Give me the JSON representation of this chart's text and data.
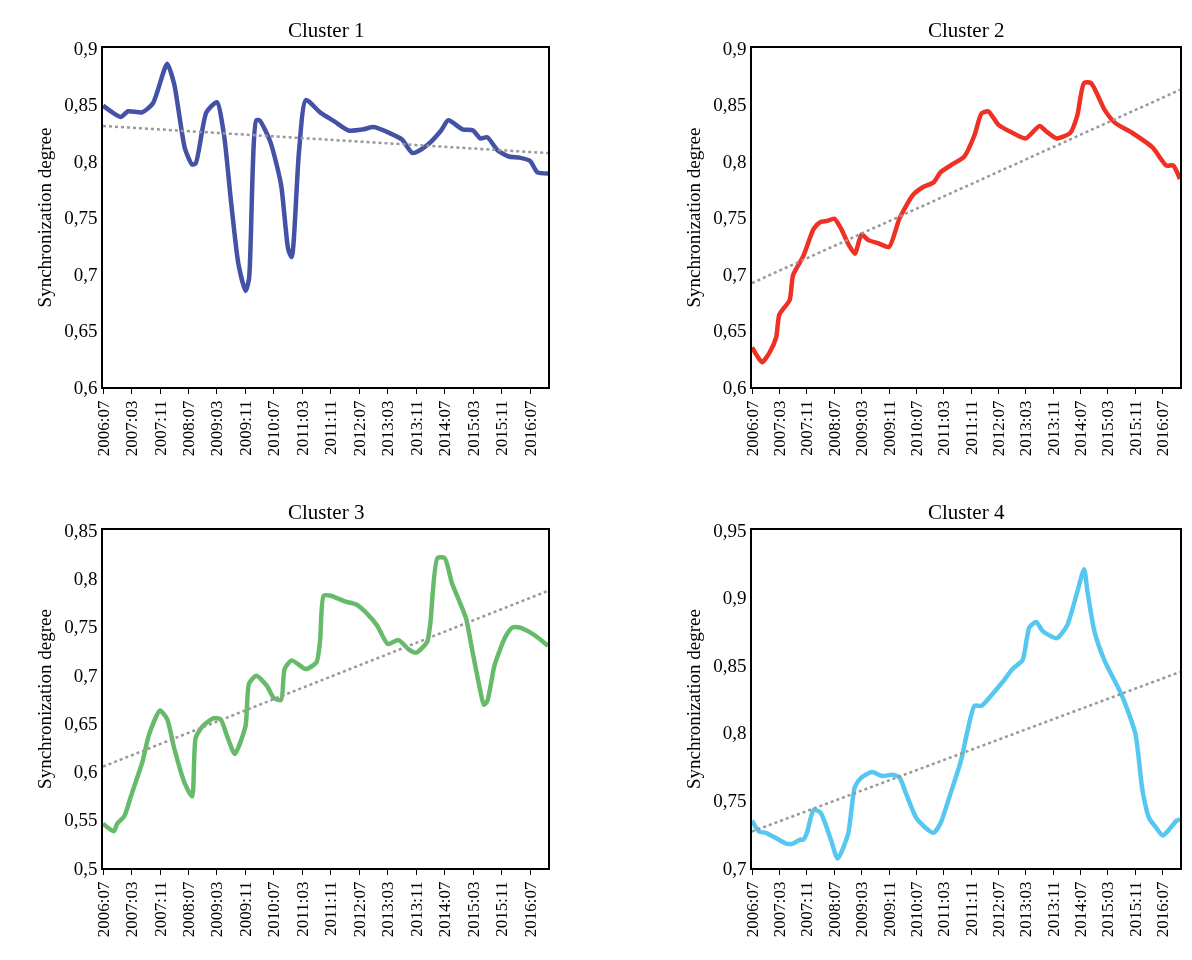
{
  "chart_data": [
    {
      "type": "line",
      "title": "Cluster 1",
      "ylabel": "Synchronization degree",
      "marker": "none",
      "line_style": "solid",
      "xlim": [
        "2006-07",
        "2016-12"
      ],
      "ylim": [
        0.6,
        0.9
      ],
      "yticks": [
        {
          "value": 0.6,
          "label": "0,6"
        },
        {
          "value": 0.65,
          "label": "0,65"
        },
        {
          "value": 0.7,
          "label": "0,7"
        },
        {
          "value": 0.75,
          "label": "0,75"
        },
        {
          "value": 0.8,
          "label": "0,8"
        },
        {
          "value": 0.85,
          "label": "0,85"
        },
        {
          "value": 0.9,
          "label": "0,9"
        }
      ],
      "xticks": [
        {
          "value": "2006-07",
          "label": "2006:07"
        },
        {
          "value": "2007-03",
          "label": "2007:03"
        },
        {
          "value": "2007-11",
          "label": "2007:11"
        },
        {
          "value": "2008-07",
          "label": "2008:07"
        },
        {
          "value": "2009-03",
          "label": "2009:03"
        },
        {
          "value": "2009-11",
          "label": "2009:11"
        },
        {
          "value": "2010-07",
          "label": "2010:07"
        },
        {
          "value": "2011-03",
          "label": "2011:03"
        },
        {
          "value": "2011-11",
          "label": "2011:11"
        },
        {
          "value": "2012-07",
          "label": "2012:07"
        },
        {
          "value": "2013-03",
          "label": "2013:03"
        },
        {
          "value": "2013-11",
          "label": "2013:11"
        },
        {
          "value": "2014-07",
          "label": "2014:07"
        },
        {
          "value": "2015-03",
          "label": "2015:03"
        },
        {
          "value": "2015-11",
          "label": "2015:11"
        },
        {
          "value": "2016-07",
          "label": "2016:07"
        }
      ],
      "series": [
        {
          "color": "#4452a6",
          "x": [
            "2006-07",
            "2006-12",
            "2007-02",
            "2007-06",
            "2007-09",
            "2008-01",
            "2008-03",
            "2008-06",
            "2008-08",
            "2008-09",
            "2008-12",
            "2009-03",
            "2009-05",
            "2009-07",
            "2009-09",
            "2009-11",
            "2009-12",
            "2010-02",
            "2010-03",
            "2010-06",
            "2010-09",
            "2010-11",
            "2010-12",
            "2011-02",
            "2011-04",
            "2011-08",
            "2011-12",
            "2012-04",
            "2012-08",
            "2012-11",
            "2013-04",
            "2013-07",
            "2013-10",
            "2014-02",
            "2014-06",
            "2014-08",
            "2014-12",
            "2015-03",
            "2015-05",
            "2015-07",
            "2015-10",
            "2016-01",
            "2016-04",
            "2016-07",
            "2016-09",
            "2016-12"
          ],
          "values": [
            0.849,
            0.839,
            0.844,
            0.843,
            0.851,
            0.886,
            0.868,
            0.811,
            0.797,
            0.798,
            0.843,
            0.852,
            0.823,
            0.763,
            0.709,
            0.685,
            0.696,
            0.836,
            0.836,
            0.817,
            0.779,
            0.722,
            0.715,
            0.808,
            0.854,
            0.843,
            0.835,
            0.827,
            0.828,
            0.83,
            0.824,
            0.819,
            0.807,
            0.814,
            0.827,
            0.836,
            0.828,
            0.827,
            0.82,
            0.821,
            0.809,
            0.804,
            0.803,
            0.8,
            0.79,
            0.789
          ]
        },
        {
          "type": "line",
          "color": "#999999",
          "line_style": "dotted",
          "x": [
            "2006-07",
            "2016-12"
          ],
          "values": [
            0.831,
            0.807
          ]
        }
      ]
    },
    {
      "type": "line",
      "title": "Cluster 2",
      "ylabel": "Synchronization degree",
      "marker": "none",
      "line_style": "solid",
      "xlim": [
        "2006-07",
        "2016-12"
      ],
      "ylim": [
        0.6,
        0.9
      ],
      "yticks": [
        {
          "value": 0.6,
          "label": "0,6"
        },
        {
          "value": 0.65,
          "label": "0,65"
        },
        {
          "value": 0.7,
          "label": "0,7"
        },
        {
          "value": 0.75,
          "label": "0,75"
        },
        {
          "value": 0.8,
          "label": "0,8"
        },
        {
          "value": 0.85,
          "label": "0,85"
        },
        {
          "value": 0.9,
          "label": "0,9"
        }
      ],
      "xticks": [
        {
          "value": "2006-07",
          "label": "2006:07"
        },
        {
          "value": "2007-03",
          "label": "2007:03"
        },
        {
          "value": "2007-11",
          "label": "2007:11"
        },
        {
          "value": "2008-07",
          "label": "2008:07"
        },
        {
          "value": "2009-03",
          "label": "2009:03"
        },
        {
          "value": "2009-11",
          "label": "2009:11"
        },
        {
          "value": "2010-07",
          "label": "2010:07"
        },
        {
          "value": "2011-03",
          "label": "2011:03"
        },
        {
          "value": "2011-11",
          "label": "2011:11"
        },
        {
          "value": "2012-07",
          "label": "2012:07"
        },
        {
          "value": "2013-03",
          "label": "2013:03"
        },
        {
          "value": "2013-11",
          "label": "2013:11"
        },
        {
          "value": "2014-07",
          "label": "2014:07"
        },
        {
          "value": "2015-03",
          "label": "2015:03"
        },
        {
          "value": "2015-11",
          "label": "2015:11"
        },
        {
          "value": "2016-07",
          "label": "2016:07"
        }
      ],
      "series": [
        {
          "color": "#ee3124",
          "x": [
            "2006-07",
            "2006-09",
            "2006-10",
            "2006-12",
            "2007-02",
            "2007-03",
            "2007-06",
            "2007-07",
            "2007-10",
            "2008-01",
            "2008-03",
            "2008-05",
            "2008-07",
            "2008-09",
            "2008-11",
            "2009-01",
            "2009-03",
            "2009-05",
            "2009-08",
            "2009-11",
            "2010-02",
            "2010-06",
            "2010-09",
            "2010-12",
            "2011-02",
            "2011-05",
            "2011-09",
            "2011-12",
            "2012-02",
            "2012-04",
            "2012-07",
            "2012-11",
            "2013-03",
            "2013-07",
            "2013-09",
            "2013-12",
            "2014-04",
            "2014-06",
            "2014-08",
            "2014-10",
            "2015-02",
            "2015-05",
            "2015-10",
            "2016-04",
            "2016-08",
            "2016-10",
            "2016-12"
          ],
          "values": [
            0.635,
            0.625,
            0.622,
            0.63,
            0.644,
            0.664,
            0.677,
            0.699,
            0.716,
            0.74,
            0.746,
            0.747,
            0.749,
            0.74,
            0.727,
            0.718,
            0.735,
            0.73,
            0.727,
            0.724,
            0.749,
            0.77,
            0.777,
            0.781,
            0.79,
            0.796,
            0.804,
            0.823,
            0.842,
            0.844,
            0.832,
            0.825,
            0.82,
            0.831,
            0.826,
            0.82,
            0.825,
            0.84,
            0.869,
            0.869,
            0.845,
            0.834,
            0.825,
            0.812,
            0.796,
            0.796,
            0.784
          ]
        },
        {
          "type": "line",
          "color": "#999999",
          "line_style": "dotted",
          "x": [
            "2006-07",
            "2016-12"
          ],
          "values": [
            0.692,
            0.863
          ]
        }
      ]
    },
    {
      "type": "line",
      "title": "Cluster 3",
      "ylabel": "Synchronization degree",
      "marker": "none",
      "line_style": "solid",
      "xlim": [
        "2006-07",
        "2016-12"
      ],
      "ylim": [
        0.5,
        0.85
      ],
      "yticks": [
        {
          "value": 0.5,
          "label": "0,5"
        },
        {
          "value": 0.55,
          "label": "0,55"
        },
        {
          "value": 0.6,
          "label": "0,6"
        },
        {
          "value": 0.65,
          "label": "0,65"
        },
        {
          "value": 0.7,
          "label": "0,7"
        },
        {
          "value": 0.75,
          "label": "0,75"
        },
        {
          "value": 0.8,
          "label": "0,8"
        },
        {
          "value": 0.85,
          "label": "0,85"
        }
      ],
      "xticks": [
        {
          "value": "2006-07",
          "label": "2006:07"
        },
        {
          "value": "2007-03",
          "label": "2007:03"
        },
        {
          "value": "2007-11",
          "label": "2007:11"
        },
        {
          "value": "2008-07",
          "label": "2008:07"
        },
        {
          "value": "2009-03",
          "label": "2009:03"
        },
        {
          "value": "2009-11",
          "label": "2009:11"
        },
        {
          "value": "2010-07",
          "label": "2010:07"
        },
        {
          "value": "2011-03",
          "label": "2011:03"
        },
        {
          "value": "2011-11",
          "label": "2011:11"
        },
        {
          "value": "2012-07",
          "label": "2012:07"
        },
        {
          "value": "2013-03",
          "label": "2013:03"
        },
        {
          "value": "2013-11",
          "label": "2013:11"
        },
        {
          "value": "2014-07",
          "label": "2014:07"
        },
        {
          "value": "2015-03",
          "label": "2015:03"
        },
        {
          "value": "2015-11",
          "label": "2015:11"
        },
        {
          "value": "2016-07",
          "label": "2016:07"
        }
      ],
      "series": [
        {
          "color": "#66bb6a",
          "x": [
            "2006-07",
            "2006-10",
            "2006-11",
            "2007-01",
            "2007-03",
            "2007-06",
            "2007-08",
            "2007-11",
            "2008-01",
            "2008-03",
            "2008-06",
            "2008-08",
            "2008-09",
            "2008-11",
            "2009-02",
            "2009-04",
            "2009-06",
            "2009-08",
            "2009-11",
            "2009-12",
            "2010-02",
            "2010-05",
            "2010-07",
            "2010-09",
            "2010-10",
            "2010-12",
            "2011-04",
            "2011-07",
            "2011-08",
            "2011-09",
            "2011-11",
            "2012-03",
            "2012-06",
            "2012-09",
            "2012-12",
            "2013-03",
            "2013-06",
            "2013-09",
            "2013-11",
            "2014-02",
            "2014-03",
            "2014-05",
            "2014-07",
            "2014-09",
            "2014-11",
            "2015-01",
            "2015-03",
            "2015-05",
            "2015-06",
            "2015-07",
            "2015-09",
            "2015-12",
            "2016-02",
            "2016-04",
            "2016-07",
            "2016-09",
            "2016-12"
          ],
          "values": [
            0.546,
            0.538,
            0.546,
            0.554,
            0.576,
            0.609,
            0.639,
            0.663,
            0.654,
            0.624,
            0.587,
            0.574,
            0.635,
            0.647,
            0.655,
            0.654,
            0.635,
            0.618,
            0.647,
            0.691,
            0.699,
            0.689,
            0.676,
            0.674,
            0.706,
            0.715,
            0.706,
            0.713,
            0.736,
            0.782,
            0.782,
            0.776,
            0.773,
            0.764,
            0.751,
            0.732,
            0.736,
            0.726,
            0.723,
            0.734,
            0.754,
            0.821,
            0.821,
            0.795,
            0.777,
            0.758,
            0.721,
            0.684,
            0.669,
            0.673,
            0.71,
            0.739,
            0.749,
            0.749,
            0.744,
            0.739,
            0.73
          ]
        },
        {
          "type": "line",
          "color": "#999999",
          "line_style": "dotted",
          "x": [
            "2006-07",
            "2016-12"
          ],
          "values": [
            0.605,
            0.787
          ]
        }
      ]
    },
    {
      "type": "line",
      "title": "Cluster 4",
      "ylabel": "Synchronization degree",
      "marker": "none",
      "line_style": "solid",
      "xlim": [
        "2006-07",
        "2016-12"
      ],
      "ylim": [
        0.7,
        0.95
      ],
      "yticks": [
        {
          "value": 0.7,
          "label": "0,7"
        },
        {
          "value": 0.75,
          "label": "0,75"
        },
        {
          "value": 0.8,
          "label": "0,8"
        },
        {
          "value": 0.85,
          "label": "0,85"
        },
        {
          "value": 0.9,
          "label": "0,9"
        },
        {
          "value": 0.95,
          "label": "0,95"
        }
      ],
      "xticks": [
        {
          "value": "2006-07",
          "label": "2006:07"
        },
        {
          "value": "2007-03",
          "label": "2007:03"
        },
        {
          "value": "2007-11",
          "label": "2007:11"
        },
        {
          "value": "2008-07",
          "label": "2008:07"
        },
        {
          "value": "2009-03",
          "label": "2009:03"
        },
        {
          "value": "2009-11",
          "label": "2009:11"
        },
        {
          "value": "2010-07",
          "label": "2010:07"
        },
        {
          "value": "2011-03",
          "label": "2011:03"
        },
        {
          "value": "2011-11",
          "label": "2011:11"
        },
        {
          "value": "2012-07",
          "label": "2012:07"
        },
        {
          "value": "2013-03",
          "label": "2013:03"
        },
        {
          "value": "2013-11",
          "label": "2013:11"
        },
        {
          "value": "2014-07",
          "label": "2014:07"
        },
        {
          "value": "2015-03",
          "label": "2015:03"
        },
        {
          "value": "2015-11",
          "label": "2015:11"
        },
        {
          "value": "2016-07",
          "label": "2016:07"
        }
      ],
      "series": [
        {
          "color": "#55c7f0",
          "x": [
            "2006-07",
            "2006-09",
            "2006-11",
            "2007-02",
            "2007-05",
            "2007-07",
            "2007-09",
            "2007-10",
            "2007-11",
            "2008-01",
            "2008-03",
            "2008-06",
            "2008-08",
            "2008-11",
            "2009-01",
            "2009-03",
            "2009-06",
            "2009-09",
            "2009-12",
            "2010-02",
            "2010-04",
            "2010-07",
            "2010-10",
            "2010-12",
            "2011-02",
            "2011-05",
            "2011-08",
            "2011-10",
            "2011-12",
            "2012-02",
            "2012-05",
            "2012-08",
            "2012-11",
            "2013-02",
            "2013-04",
            "2013-06",
            "2013-08",
            "2013-12",
            "2014-03",
            "2014-06",
            "2014-08",
            "2014-09",
            "2014-11",
            "2015-02",
            "2015-07",
            "2015-11",
            "2016-01",
            "2016-03",
            "2016-05",
            "2016-07",
            "2016-09",
            "2016-11",
            "2016-12"
          ],
          "values": [
            0.735,
            0.727,
            0.726,
            0.722,
            0.718,
            0.718,
            0.721,
            0.721,
            0.726,
            0.743,
            0.741,
            0.721,
            0.707,
            0.725,
            0.76,
            0.767,
            0.771,
            0.768,
            0.769,
            0.767,
            0.755,
            0.737,
            0.729,
            0.726,
            0.733,
            0.755,
            0.779,
            0.802,
            0.82,
            0.82,
            0.828,
            0.837,
            0.847,
            0.854,
            0.878,
            0.882,
            0.875,
            0.87,
            0.879,
            0.904,
            0.921,
            0.904,
            0.875,
            0.853,
            0.828,
            0.799,
            0.758,
            0.737,
            0.73,
            0.724,
            0.729,
            0.735,
            0.736
          ]
        },
        {
          "type": "line",
          "color": "#999999",
          "line_style": "dotted",
          "x": [
            "2006-07",
            "2016-12"
          ],
          "values": [
            0.727,
            0.845
          ]
        }
      ]
    }
  ]
}
